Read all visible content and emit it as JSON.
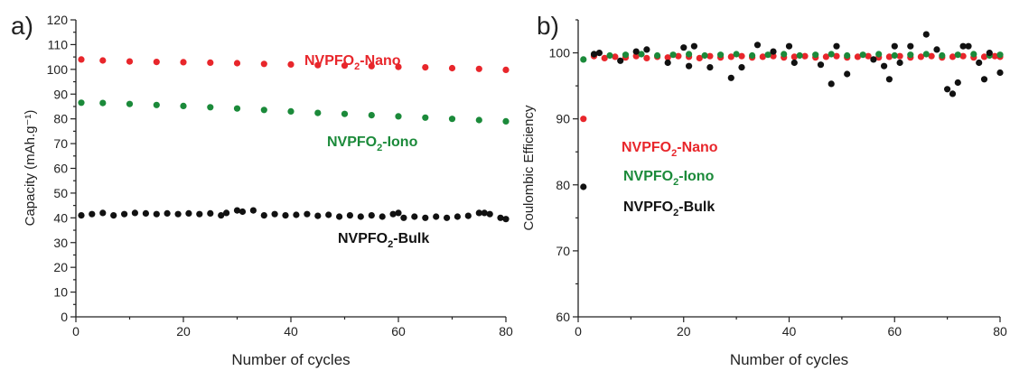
{
  "chart_data": [
    {
      "panel": "a)",
      "type": "scatter",
      "xlabel": "Number of cycles",
      "ylabel": "Capacity (mAh.g⁻¹)",
      "xlim": [
        0,
        80
      ],
      "ylim": [
        0,
        120
      ],
      "xticks": [
        0,
        20,
        40,
        60,
        80
      ],
      "yticks": [
        0,
        10,
        20,
        30,
        40,
        50,
        60,
        70,
        80,
        90,
        100,
        110,
        120
      ],
      "grid": false,
      "series": [
        {
          "name": "NVPFO2-Nano",
          "label_parts": [
            "NVPFO",
            "2",
            "-Nano"
          ],
          "color": "#e8262b",
          "x": [
            1,
            5,
            10,
            15,
            20,
            25,
            30,
            35,
            40,
            45,
            50,
            55,
            60,
            65,
            70,
            75,
            80
          ],
          "y": [
            104,
            103.6,
            103.2,
            103,
            102.9,
            102.7,
            102.5,
            102.2,
            102,
            101.7,
            101.5,
            101.3,
            101,
            100.8,
            100.5,
            100.2,
            99.8
          ]
        },
        {
          "name": "NVPFO2-Iono",
          "label_parts": [
            "NVPFO",
            "2",
            "-Iono"
          ],
          "color": "#1b8a3a",
          "x": [
            1,
            5,
            10,
            15,
            20,
            25,
            30,
            35,
            40,
            45,
            50,
            55,
            60,
            65,
            70,
            75,
            80
          ],
          "y": [
            86.5,
            86.4,
            86,
            85.6,
            85.2,
            84.7,
            84.2,
            83.6,
            83,
            82.4,
            82,
            81.5,
            81,
            80.5,
            80,
            79.5,
            79
          ]
        },
        {
          "name": "NVPFO2-Bulk",
          "label_parts": [
            "NVPFO",
            "2",
            "-Bulk"
          ],
          "color": "#111111",
          "x": [
            1,
            3,
            5,
            7,
            9,
            11,
            13,
            15,
            17,
            19,
            21,
            23,
            25,
            27,
            28,
            30,
            31,
            33,
            35,
            37,
            39,
            41,
            43,
            45,
            47,
            49,
            51,
            53,
            55,
            57,
            59,
            60,
            61,
            63,
            65,
            67,
            69,
            71,
            73,
            75,
            76,
            77,
            79,
            80
          ],
          "y": [
            41,
            41.5,
            42,
            41,
            41.5,
            42,
            41.8,
            41.5,
            41.8,
            41.5,
            41.8,
            41.5,
            41.8,
            41,
            42,
            43,
            42.5,
            43,
            41,
            41.5,
            41,
            41.2,
            41.5,
            40.8,
            41.2,
            40.5,
            41,
            40.5,
            41,
            40.5,
            41.5,
            42,
            40,
            40.5,
            40,
            40.5,
            40,
            40.5,
            40.8,
            42,
            42,
            41.5,
            40,
            39.5
          ]
        }
      ]
    },
    {
      "panel": "b)",
      "type": "scatter",
      "xlabel": "Number of cycles",
      "ylabel": "Coulombic Efficiency",
      "xlim": [
        0,
        80
      ],
      "ylim": [
        60,
        105
      ],
      "xticks": [
        0,
        20,
        40,
        60,
        80
      ],
      "yticks": [
        60,
        70,
        80,
        90,
        100
      ],
      "grid": false,
      "series": [
        {
          "name": "NVPFO2-Nano",
          "label_parts": [
            "NVPFO",
            "2",
            "-Nano"
          ],
          "color": "#e8262b",
          "x": [
            1,
            3,
            5,
            7,
            9,
            11,
            13,
            15,
            17,
            19,
            21,
            23,
            25,
            27,
            29,
            31,
            33,
            35,
            37,
            39,
            41,
            43,
            45,
            47,
            49,
            51,
            53,
            55,
            57,
            59,
            61,
            63,
            65,
            67,
            69,
            71,
            73,
            75,
            77,
            79,
            80
          ],
          "y": [
            90,
            99.5,
            99.2,
            99.4,
            99.3,
            99.5,
            99.2,
            99.4,
            99.3,
            99.5,
            99.4,
            99.2,
            99.5,
            99.3,
            99.4,
            99.5,
            99.3,
            99.4,
            99.5,
            99.3,
            99.4,
            99.5,
            99.3,
            99.4,
            99.5,
            99.3,
            99.4,
            99.5,
            99.3,
            99.4,
            99.5,
            99.3,
            99.4,
            99.5,
            99.3,
            99.4,
            99.5,
            99.3,
            99.4,
            99.5,
            99.4
          ]
        },
        {
          "name": "NVPFO2-Iono",
          "label_parts": [
            "NVPFO",
            "2",
            "-Iono"
          ],
          "color": "#1b8a3a",
          "x": [
            1,
            3,
            6,
            9,
            12,
            15,
            18,
            21,
            24,
            27,
            30,
            33,
            36,
            39,
            42,
            45,
            48,
            51,
            54,
            57,
            60,
            63,
            66,
            69,
            72,
            75,
            78,
            80
          ],
          "y": [
            99,
            99.8,
            99.6,
            99.7,
            99.8,
            99.6,
            99.7,
            99.8,
            99.6,
            99.7,
            99.8,
            99.6,
            99.7,
            99.8,
            99.6,
            99.7,
            99.8,
            99.6,
            99.7,
            99.8,
            99.6,
            99.7,
            99.8,
            99.6,
            99.7,
            99.8,
            99.6,
            99.7
          ]
        },
        {
          "name": "NVPFO2-Bulk",
          "label_parts": [
            "NVPFO",
            "2",
            "-Bulk"
          ],
          "color": "#111111",
          "x": [
            1,
            3,
            4,
            8,
            11,
            13,
            17,
            20,
            21,
            22,
            25,
            29,
            31,
            34,
            37,
            40,
            41,
            46,
            48,
            49,
            51,
            56,
            58,
            59,
            60,
            61,
            63,
            66,
            68,
            70,
            71,
            72,
            73,
            74,
            76,
            77,
            78,
            80
          ],
          "y": [
            79.7,
            99.8,
            100,
            98.8,
            100.2,
            100.5,
            98.5,
            100.8,
            98,
            101,
            97.8,
            96.2,
            97.8,
            101.2,
            100.2,
            101,
            98.5,
            98.2,
            95.3,
            101,
            96.8,
            99,
            98,
            96,
            101,
            98.5,
            101,
            102.8,
            100.5,
            94.5,
            93.8,
            95.5,
            101,
            101,
            98.5,
            96,
            100,
            97
          ]
        }
      ]
    }
  ]
}
